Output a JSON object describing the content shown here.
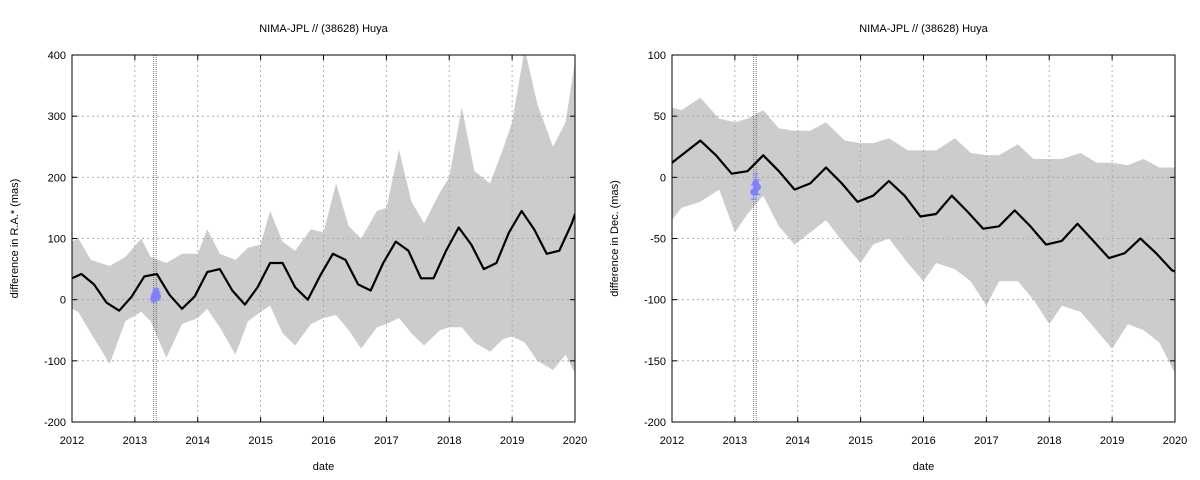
{
  "chart_data": [
    {
      "type": "line",
      "title": "NIMA-JPL // (38628) Huya",
      "xlabel": "date",
      "ylabel": "difference in R.A.* (mas)",
      "xlim": [
        2012,
        2020
      ],
      "ylim": [
        -200,
        400
      ],
      "x_ticks": [
        "2012",
        "2013",
        "2014",
        "2015",
        "2016",
        "2017",
        "2018",
        "2019",
        "2020"
      ],
      "y_ticks": [
        "-200",
        "-100",
        "0",
        "100",
        "200",
        "300",
        "400"
      ],
      "grid": true,
      "band_color": "#cccccc",
      "line_color": "#000000",
      "obs_color": "#8080ff",
      "vertical_markers": [
        2013.3,
        2013.34
      ],
      "series": [
        {
          "kind": "line",
          "x": [
            2012.0,
            2012.15,
            2012.35,
            2012.55,
            2012.75,
            2012.95,
            2013.15,
            2013.35,
            2013.55,
            2013.75,
            2013.95,
            2014.15,
            2014.35,
            2014.55,
            2014.75,
            2014.95,
            2015.15,
            2015.35,
            2015.55,
            2015.75,
            2015.95,
            2016.15,
            2016.35,
            2016.55,
            2016.75,
            2016.95,
            2017.15,
            2017.35,
            2017.55,
            2017.75,
            2017.95,
            2018.15,
            2018.35,
            2018.55,
            2018.75,
            2018.95,
            2019.15,
            2019.35,
            2019.55,
            2019.75,
            2019.95,
            2020.0
          ],
          "y": [
            35,
            42,
            25,
            -5,
            -18,
            5,
            38,
            42,
            8,
            -15,
            5,
            45,
            50,
            15,
            -8,
            20,
            60,
            60,
            20,
            0,
            40,
            75,
            65,
            25,
            15,
            60,
            95,
            80,
            35,
            35,
            80,
            118,
            90,
            50,
            60,
            110,
            145,
            115,
            75,
            80,
            125,
            140
          ]
        },
        {
          "kind": "band",
          "x": [
            2012.0,
            2012.1,
            2012.3,
            2012.6,
            2012.85,
            2013.1,
            2013.25,
            2013.5,
            2013.75,
            2014.0,
            2014.15,
            2014.35,
            2014.6,
            2014.8,
            2015.0,
            2015.15,
            2015.35,
            2015.55,
            2015.8,
            2016.0,
            2016.2,
            2016.4,
            2016.6,
            2016.85,
            2017.0,
            2017.2,
            2017.4,
            2017.6,
            2017.85,
            2018.0,
            2018.2,
            2018.4,
            2018.65,
            2018.85,
            2019.0,
            2019.2,
            2019.4,
            2019.65,
            2019.85,
            2020.0
          ],
          "upper": [
            95,
            100,
            65,
            55,
            70,
            100,
            70,
            60,
            75,
            75,
            115,
            75,
            65,
            85,
            90,
            145,
            95,
            80,
            115,
            110,
            190,
            120,
            100,
            145,
            150,
            245,
            160,
            125,
            175,
            200,
            315,
            210,
            190,
            245,
            290,
            410,
            320,
            250,
            290,
            390
          ],
          "lower": [
            -15,
            -20,
            -55,
            -105,
            -35,
            -20,
            -35,
            -95,
            -40,
            -30,
            -15,
            -45,
            -90,
            -35,
            -20,
            -10,
            -55,
            -75,
            -40,
            -30,
            -25,
            -50,
            -80,
            -45,
            -40,
            -30,
            -55,
            -75,
            -50,
            -45,
            -45,
            -70,
            -85,
            -65,
            -60,
            -70,
            -100,
            -115,
            -90,
            -120
          ]
        },
        {
          "kind": "observations",
          "x": [
            2013.3,
            2013.32,
            2013.34,
            2013.36
          ],
          "y": [
            2,
            8,
            12,
            5
          ],
          "yerr": [
            6,
            6,
            6,
            6
          ]
        }
      ]
    },
    {
      "type": "line",
      "title": "NIMA-JPL // (38628) Huya",
      "xlabel": "date",
      "ylabel": "difference in Dec. (mas)",
      "xlim": [
        2012,
        2020
      ],
      "ylim": [
        -200,
        100
      ],
      "x_ticks": [
        "2012",
        "2013",
        "2014",
        "2015",
        "2016",
        "2017",
        "2018",
        "2019",
        "2020"
      ],
      "y_ticks": [
        "-200",
        "-150",
        "-100",
        "-50",
        "0",
        "50",
        "100"
      ],
      "grid": true,
      "band_color": "#cccccc",
      "line_color": "#000000",
      "obs_color": "#8080ff",
      "vertical_markers": [
        2013.3,
        2013.34
      ],
      "series": [
        {
          "kind": "line",
          "x": [
            2012.0,
            2012.2,
            2012.45,
            2012.7,
            2012.95,
            2013.2,
            2013.45,
            2013.7,
            2013.95,
            2014.2,
            2014.45,
            2014.7,
            2014.95,
            2015.2,
            2015.45,
            2015.7,
            2015.95,
            2016.2,
            2016.45,
            2016.7,
            2016.95,
            2017.2,
            2017.45,
            2017.7,
            2017.95,
            2018.2,
            2018.45,
            2018.7,
            2018.95,
            2019.2,
            2019.45,
            2019.7,
            2019.95,
            2020.0
          ],
          "y": [
            12,
            20,
            30,
            18,
            3,
            5,
            18,
            5,
            -10,
            -5,
            8,
            -5,
            -20,
            -15,
            -3,
            -15,
            -32,
            -30,
            -15,
            -28,
            -42,
            -40,
            -27,
            -40,
            -55,
            -52,
            -38,
            -52,
            -66,
            -62,
            -50,
            -62,
            -76,
            -77
          ]
        },
        {
          "kind": "band",
          "x": [
            2012.0,
            2012.15,
            2012.45,
            2012.75,
            2013.0,
            2013.2,
            2013.45,
            2013.7,
            2013.95,
            2014.2,
            2014.45,
            2014.75,
            2015.0,
            2015.2,
            2015.45,
            2015.75,
            2016.0,
            2016.2,
            2016.5,
            2016.75,
            2017.0,
            2017.2,
            2017.5,
            2017.75,
            2018.0,
            2018.2,
            2018.5,
            2018.75,
            2019.0,
            2019.25,
            2019.5,
            2019.75,
            2020.0
          ],
          "upper": [
            57,
            55,
            65,
            48,
            45,
            48,
            55,
            40,
            38,
            38,
            45,
            30,
            28,
            28,
            32,
            22,
            22,
            22,
            32,
            20,
            18,
            18,
            27,
            15,
            15,
            15,
            20,
            12,
            12,
            10,
            15,
            8,
            8
          ],
          "lower": [
            -35,
            -25,
            -20,
            -10,
            -45,
            -30,
            -15,
            -40,
            -55,
            -45,
            -35,
            -55,
            -70,
            -55,
            -50,
            -70,
            -85,
            -70,
            -75,
            -85,
            -105,
            -85,
            -85,
            -100,
            -120,
            -105,
            -110,
            -125,
            -140,
            -120,
            -125,
            -135,
            -160
          ]
        },
        {
          "kind": "observations",
          "x": [
            2013.3,
            2013.33,
            2013.36
          ],
          "y": [
            -12,
            -5,
            -8
          ],
          "yerr": [
            6,
            8,
            6
          ]
        }
      ]
    }
  ]
}
